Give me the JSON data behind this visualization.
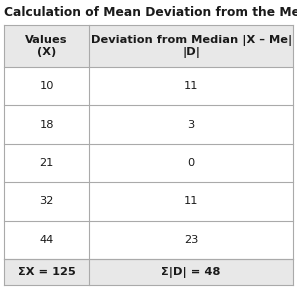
{
  "title": "Calculation of Mean Deviation from the Median",
  "col1_header_line1": "Values",
  "col1_header_line2": "(X)",
  "col2_header_line1": "Deviation from Median |X – Me|",
  "col2_header_line2": "|D|",
  "rows": [
    [
      "10",
      "11"
    ],
    [
      "18",
      "3"
    ],
    [
      "21",
      "0"
    ],
    [
      "32",
      "11"
    ],
    [
      "44",
      "23"
    ]
  ],
  "summary_col1": "ΣX = 125",
  "summary_col2": "Σ|D| = 48",
  "title_fontsize": 8.8,
  "header_fontsize": 8.2,
  "cell_fontsize": 8.2,
  "summary_fontsize": 8.2,
  "background_color": "#ffffff",
  "header_bg": "#e8e8e8",
  "cell_bg": "#ffffff",
  "border_color": "#aaaaaa",
  "title_color": "#1a1a1a",
  "text_color": "#1a1a1a"
}
